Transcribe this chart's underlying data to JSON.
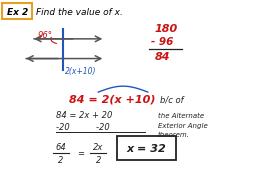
{
  "bg_color": "#ffffff",
  "ex_label": "Ex 2",
  "title": "Find the value of x.",
  "angle1_label": "96°",
  "angle2_label": "2(x+10)",
  "calc_180": "180",
  "calc_minus96": "- 96",
  "calc_84": "84",
  "eq_main": "84 = 2(x +10)",
  "bc_of": "b/c of",
  "step1": "84 = 2x + 20",
  "step1b": "-20         -20",
  "reason1": "the Alternate",
  "reason2": "Exterior Angle",
  "reason3": "theorem.",
  "frac_top1": "64",
  "frac_bot1": "2",
  "frac_top2": "2x",
  "frac_bot2": "2",
  "answer": "x = 32",
  "ex_box_color": "#e8a020",
  "red_color": "#cc1111",
  "blue_color": "#2255bb",
  "dark_color": "#222222",
  "gray_color": "#555555"
}
